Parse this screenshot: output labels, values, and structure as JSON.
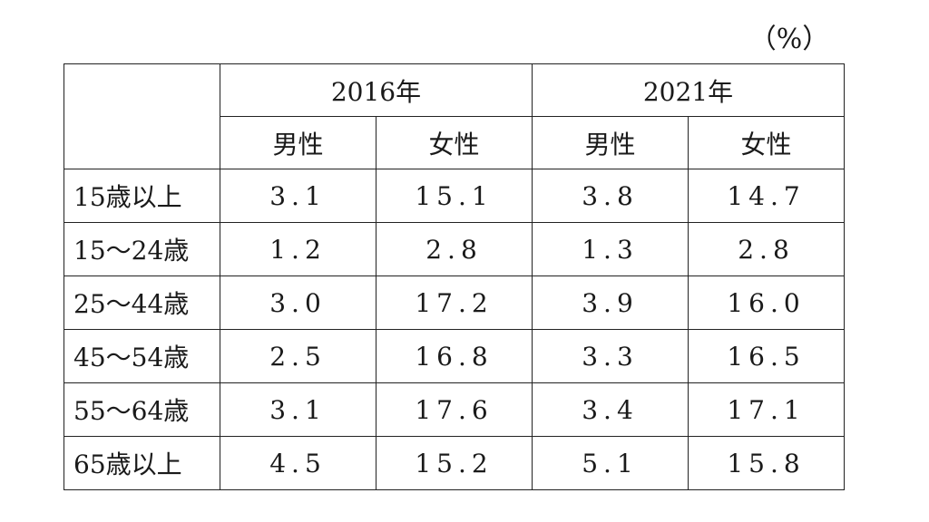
{
  "unit_label": "（%）",
  "header": {
    "years": [
      "2016年",
      "2021年"
    ],
    "genders": [
      "男性",
      "女性",
      "男性",
      "女性"
    ]
  },
  "rows": [
    {
      "label": "15歳以上",
      "values": [
        "3.1",
        "15.1",
        "3.8",
        "14.7"
      ]
    },
    {
      "label": "15～24歳",
      "values": [
        "1.2",
        "2.8",
        "1.3",
        "2.8"
      ]
    },
    {
      "label": "25～44歳",
      "values": [
        "3.0",
        "17.2",
        "3.9",
        "16.0"
      ]
    },
    {
      "label": "45～54歳",
      "values": [
        "2.5",
        "16.8",
        "3.3",
        "16.5"
      ]
    },
    {
      "label": "55～64歳",
      "values": [
        "3.1",
        "17.6",
        "3.4",
        "17.1"
      ]
    },
    {
      "label": "65歳以上",
      "values": [
        "4.5",
        "15.2",
        "5.1",
        "15.8"
      ]
    }
  ]
}
